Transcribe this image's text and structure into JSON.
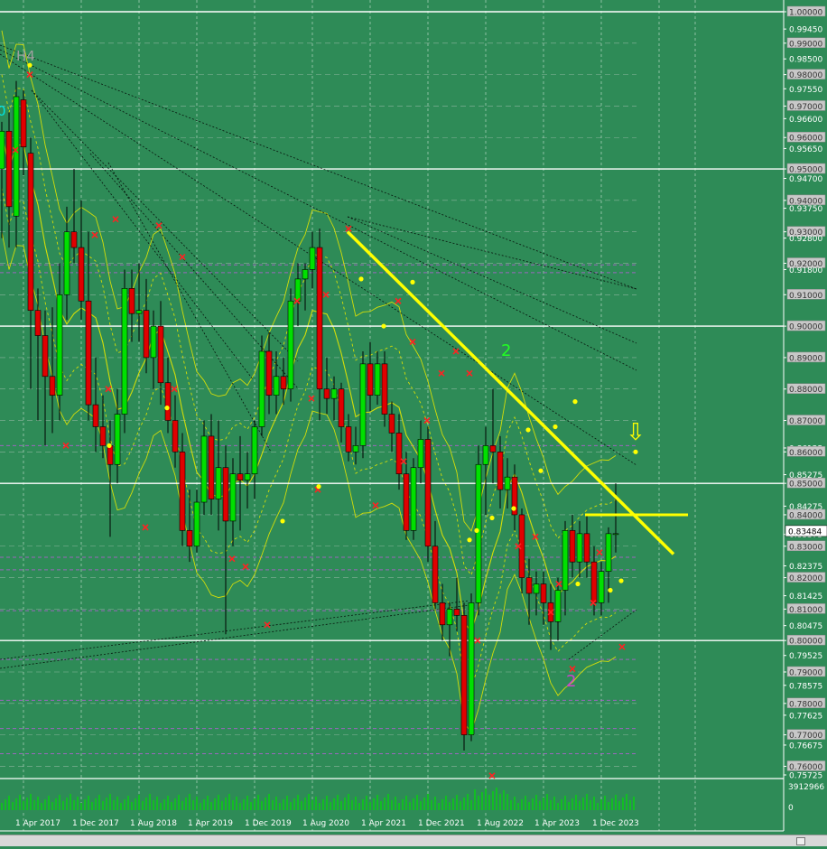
{
  "chart_data": {
    "type": "candlestick",
    "title": "",
    "x_labels": [
      "1 Apr 2017",
      "1 Dec 2017",
      "1 Aug 2018",
      "1 Apr 2019",
      "1 Dec 2019",
      "1 Aug 2020",
      "1 Apr 2021",
      "1 Dec 2021",
      "1 Aug 2022",
      "1 Apr 2023",
      "1 Dec 2023"
    ],
    "y_ticks": [
      "1.00000",
      "0.99450",
      "0.99000",
      "0.98500",
      "0.98000",
      "0.97550",
      "0.97000",
      "0.96600",
      "0.96000",
      "0.95650",
      "0.95000",
      "0.94700",
      "0.94000",
      "0.93750",
      "0.93000",
      "0.92800",
      "0.92000",
      "0.91800",
      "0.91000",
      "0.90000",
      "0.89000",
      "0.88000",
      "0.87000",
      "0.86125",
      "0.86000",
      "0.85275",
      "0.85000",
      "0.84275",
      "0.84000",
      "0.83375",
      "0.83000",
      "0.82375",
      "0.82000",
      "0.81425",
      "0.81000",
      "0.80475",
      "0.80000",
      "0.79525",
      "0.79000",
      "0.78575",
      "0.78000",
      "0.77625",
      "0.77000",
      "0.76675",
      "0.76000",
      "0.75725"
    ],
    "ylim": [
      0.754,
      1.0
    ],
    "current_price": "0.83484",
    "volume_ticks": [
      "3912966",
      "0"
    ],
    "annotations": [
      "H4",
      "0",
      "2",
      "2"
    ],
    "arrow_glyph": "⇩",
    "candles": [
      [
        0.95,
        0.965,
        0.928,
        0.962
      ],
      [
        0.962,
        0.968,
        0.925,
        0.938
      ],
      [
        0.935,
        0.978,
        0.925,
        0.973
      ],
      [
        0.972,
        0.975,
        0.948,
        0.957
      ],
      [
        0.955,
        0.96,
        0.88,
        0.905
      ],
      [
        0.905,
        0.912,
        0.87,
        0.897
      ],
      [
        0.897,
        0.905,
        0.862,
        0.884
      ],
      [
        0.884,
        0.906,
        0.866,
        0.878
      ],
      [
        0.878,
        0.92,
        0.87,
        0.91
      ],
      [
        0.91,
        0.938,
        0.902,
        0.93
      ],
      [
        0.93,
        0.95,
        0.92,
        0.925
      ],
      [
        0.925,
        0.94,
        0.902,
        0.908
      ],
      [
        0.908,
        0.93,
        0.87,
        0.875
      ],
      [
        0.875,
        0.89,
        0.86,
        0.868
      ],
      [
        0.868,
        0.878,
        0.858,
        0.862
      ],
      [
        0.862,
        0.87,
        0.833,
        0.856
      ],
      [
        0.856,
        0.88,
        0.85,
        0.872
      ],
      [
        0.872,
        0.918,
        0.866,
        0.912
      ],
      [
        0.912,
        0.918,
        0.895,
        0.904
      ],
      [
        0.904,
        0.92,
        0.895,
        0.905
      ],
      [
        0.905,
        0.915,
        0.885,
        0.89
      ],
      [
        0.89,
        0.905,
        0.88,
        0.9
      ],
      [
        0.9,
        0.908,
        0.875,
        0.882
      ],
      [
        0.882,
        0.89,
        0.866,
        0.87
      ],
      [
        0.87,
        0.878,
        0.855,
        0.86
      ],
      [
        0.86,
        0.866,
        0.83,
        0.835
      ],
      [
        0.835,
        0.848,
        0.825,
        0.83
      ],
      [
        0.83,
        0.848,
        0.828,
        0.844
      ],
      [
        0.844,
        0.87,
        0.84,
        0.865
      ],
      [
        0.865,
        0.872,
        0.84,
        0.845
      ],
      [
        0.845,
        0.87,
        0.835,
        0.855
      ],
      [
        0.855,
        0.862,
        0.802,
        0.838
      ],
      [
        0.838,
        0.858,
        0.83,
        0.853
      ],
      [
        0.853,
        0.865,
        0.835,
        0.851
      ],
      [
        0.851,
        0.86,
        0.842,
        0.853
      ],
      [
        0.853,
        0.87,
        0.845,
        0.868
      ],
      [
        0.868,
        0.897,
        0.865,
        0.892
      ],
      [
        0.892,
        0.898,
        0.872,
        0.878
      ],
      [
        0.878,
        0.892,
        0.872,
        0.884
      ],
      [
        0.884,
        0.89,
        0.875,
        0.88
      ],
      [
        0.88,
        0.912,
        0.876,
        0.908
      ],
      [
        0.908,
        0.92,
        0.9,
        0.915
      ],
      [
        0.915,
        0.92,
        0.905,
        0.918
      ],
      [
        0.918,
        0.93,
        0.912,
        0.925
      ],
      [
        0.925,
        0.931,
        0.87,
        0.88
      ],
      [
        0.88,
        0.89,
        0.872,
        0.877
      ],
      [
        0.877,
        0.884,
        0.87,
        0.88
      ],
      [
        0.88,
        0.882,
        0.863,
        0.868
      ],
      [
        0.868,
        0.872,
        0.857,
        0.86
      ],
      [
        0.86,
        0.868,
        0.856,
        0.862
      ],
      [
        0.862,
        0.892,
        0.858,
        0.888
      ],
      [
        0.888,
        0.895,
        0.873,
        0.878
      ],
      [
        0.878,
        0.892,
        0.875,
        0.888
      ],
      [
        0.888,
        0.892,
        0.868,
        0.872
      ],
      [
        0.872,
        0.876,
        0.86,
        0.866
      ],
      [
        0.866,
        0.872,
        0.848,
        0.853
      ],
      [
        0.853,
        0.86,
        0.832,
        0.835
      ],
      [
        0.835,
        0.858,
        0.832,
        0.855
      ],
      [
        0.855,
        0.87,
        0.85,
        0.864
      ],
      [
        0.864,
        0.868,
        0.825,
        0.83
      ],
      [
        0.83,
        0.838,
        0.81,
        0.812
      ],
      [
        0.812,
        0.818,
        0.8,
        0.805
      ],
      [
        0.805,
        0.812,
        0.795,
        0.81
      ],
      [
        0.81,
        0.82,
        0.803,
        0.808
      ],
      [
        0.808,
        0.812,
        0.765,
        0.77
      ],
      [
        0.77,
        0.815,
        0.768,
        0.812
      ],
      [
        0.812,
        0.862,
        0.808,
        0.856
      ],
      [
        0.856,
        0.868,
        0.84,
        0.862
      ],
      [
        0.862,
        0.88,
        0.85,
        0.86
      ],
      [
        0.86,
        0.865,
        0.842,
        0.848
      ],
      [
        0.848,
        0.858,
        0.842,
        0.852
      ],
      [
        0.852,
        0.856,
        0.835,
        0.84
      ],
      [
        0.84,
        0.842,
        0.815,
        0.82
      ],
      [
        0.82,
        0.826,
        0.805,
        0.815
      ],
      [
        0.815,
        0.822,
        0.808,
        0.818
      ],
      [
        0.818,
        0.822,
        0.805,
        0.812
      ],
      [
        0.812,
        0.818,
        0.797,
        0.806
      ],
      [
        0.806,
        0.82,
        0.8,
        0.816
      ],
      [
        0.816,
        0.838,
        0.808,
        0.835
      ],
      [
        0.835,
        0.84,
        0.82,
        0.825
      ],
      [
        0.825,
        0.838,
        0.82,
        0.834
      ],
      [
        0.834,
        0.84,
        0.82,
        0.825
      ],
      [
        0.825,
        0.83,
        0.808,
        0.812
      ],
      [
        0.812,
        0.825,
        0.808,
        0.822
      ],
      [
        0.822,
        0.836,
        0.812,
        0.834
      ],
      [
        0.834,
        0.85,
        0.828,
        0.834
      ]
    ],
    "horizontal_levels": [
      1.0,
      0.95,
      0.9,
      0.85,
      0.8
    ],
    "trend_line_thick": [
      [
        0.93,
        0.83575
      ]
    ],
    "sell_markers": [
      0.98,
      0.956,
      0.929,
      0.934,
      0.932,
      0.922,
      0.88,
      0.862,
      0.88,
      0.908,
      0.931,
      0.908,
      0.895,
      0.885,
      0.836,
      0.826,
      0.8235,
      0.805,
      0.877,
      0.91,
      0.848,
      0.843,
      0.857,
      0.87,
      0.892,
      0.885,
      0.757,
      0.8,
      0.791,
      0.809,
      0.798,
      0.812,
      0.818,
      0.833,
      0.83,
      0.828
    ],
    "buy_markers": [
      0.983,
      0.862,
      0.874,
      0.849,
      0.838,
      0.915,
      0.9,
      0.914,
      0.868,
      0.867,
      0.86,
      0.819,
      0.835,
      0.842,
      0.832,
      0.818,
      0.816,
      0.839,
      0.854,
      0.876
    ]
  },
  "colors": {
    "background": "#2e8b57",
    "bull": "#00e000",
    "bear": "#e00000",
    "wick": "#000000",
    "grid": "#ffffff",
    "trend": "#ffff00",
    "marker_sell": "#ff2222",
    "marker_buy": "#ffff00",
    "label_h4": "#a0a0a0",
    "label_0": "#00e5e5",
    "label_2_green": "#22ff22",
    "label_2_magenta": "#cc44cc"
  }
}
